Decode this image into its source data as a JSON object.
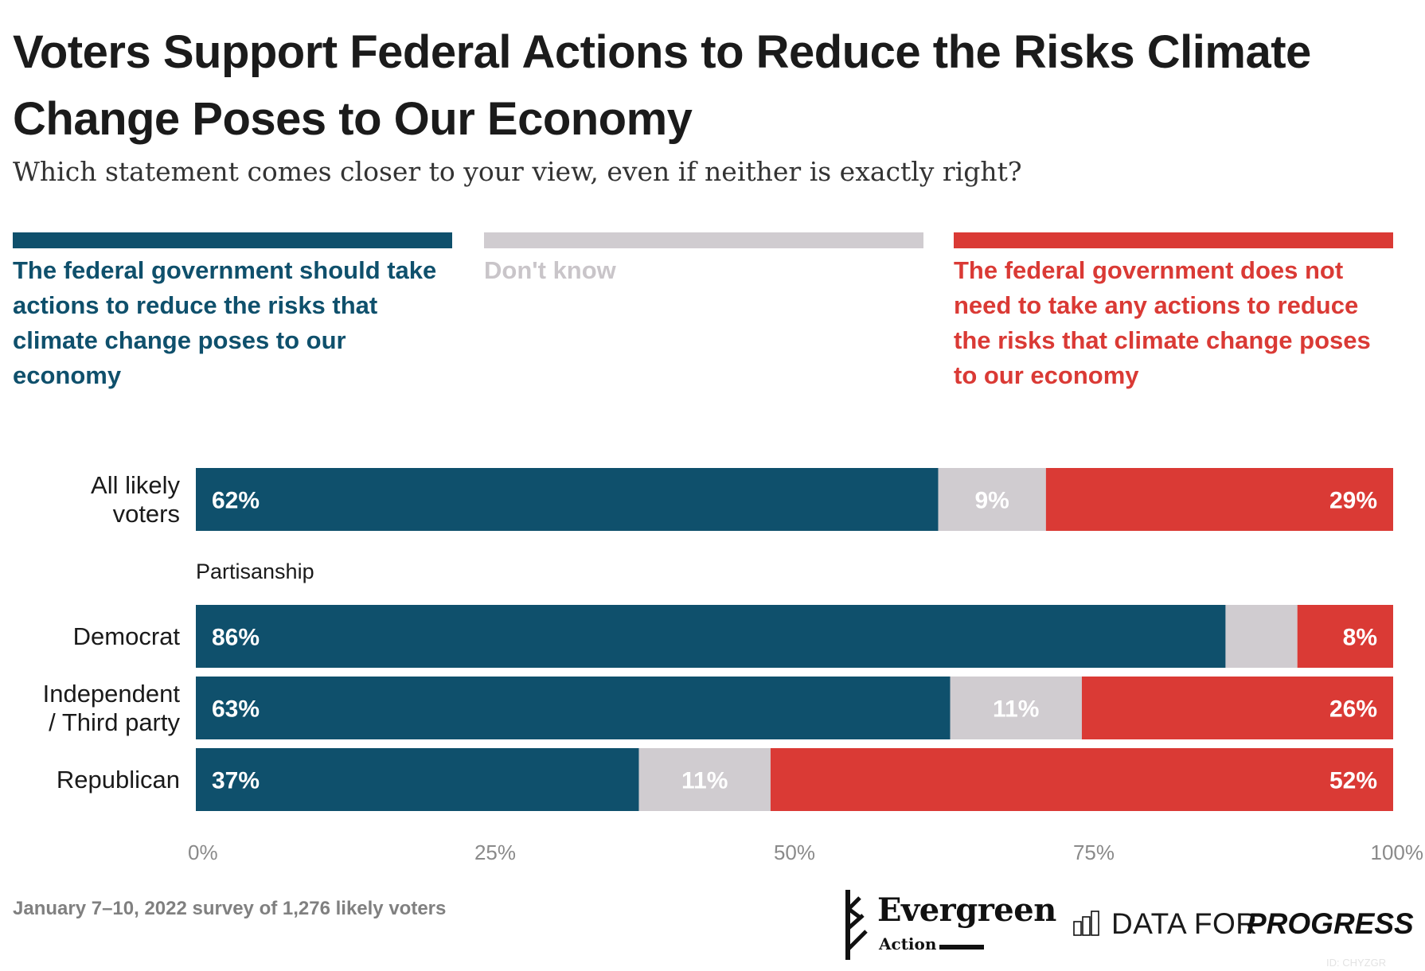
{
  "chart_data": {
    "type": "bar",
    "orientation": "horizontal",
    "stacked": true,
    "title": "Voters Support Federal Actions to Reduce the Risks Climate Change Poses to Our Economy",
    "subtitle": "Which statement comes closer to your view, even if neither is exactly right?",
    "xlabel": "",
    "ylabel": "",
    "xlim": [
      0,
      100
    ],
    "x_ticks": [
      "0%",
      "25%",
      "50%",
      "75%",
      "100%"
    ],
    "x_tick_values": [
      0,
      25,
      50,
      75,
      100
    ],
    "grid": false,
    "legend_position": "top",
    "categories": [
      "All likely voters",
      "Democrat",
      "Independent / Third party",
      "Republican"
    ],
    "category_label_lines": [
      [
        "All likely",
        "voters"
      ],
      [
        "Democrat"
      ],
      [
        "Independent",
        "/ Third party"
      ],
      [
        "Republican"
      ]
    ],
    "group_label": "Partisanship",
    "group_label_before_index": 1,
    "series": [
      {
        "name": "The federal government should take actions to reduce the risks that climate change poses to our economy",
        "color": "#0f506c",
        "values": [
          62,
          86,
          63,
          37
        ],
        "labels": [
          "62%",
          "86%",
          "63%",
          "37%"
        ]
      },
      {
        "name": "Don't know",
        "color": "#d0ccd0",
        "values": [
          9,
          6,
          11,
          11
        ],
        "labels": [
          "9%",
          "",
          "11%",
          "11%"
        ]
      },
      {
        "name": "The federal government does not need to take any actions to reduce the risks that climate change poses to our economy",
        "color": "#da3a35",
        "values": [
          29,
          8,
          26,
          52
        ],
        "labels": [
          "29%",
          "8%",
          "26%",
          "52%"
        ]
      }
    ]
  },
  "header": {
    "title": "Voters Support Federal Actions to Reduce the Risks Climate Change Poses to Our Economy",
    "subtitle": "Which statement comes closer to your view, even if neither is exactly right?"
  },
  "legend": [
    {
      "label": "The federal government should take actions to reduce the risks that climate change poses to our economy",
      "color": "#0f506c"
    },
    {
      "label": "Don't know",
      "color": "#d0ccd0"
    },
    {
      "label": "The federal government does not need to take any actions to reduce the risks that climate change poses to our economy",
      "color": "#da3a35"
    }
  ],
  "rows": [
    {
      "label_lines": [
        "All likely",
        "voters"
      ]
    },
    {
      "label_lines": [
        "Democrat"
      ]
    },
    {
      "label_lines": [
        "Independent",
        "/ Third party"
      ]
    },
    {
      "label_lines": [
        "Republican"
      ]
    }
  ],
  "group_label": "Partisanship",
  "footer": {
    "source": "January 7–10, 2022 survey of 1,276 likely voters",
    "logo_evergreen": "Evergreen",
    "logo_evergreen_sub": "Action",
    "logo_dfp_plain": "DATA FOR",
    "logo_dfp_bold": "PROGRESS",
    "chart_id": "ID: CHYZGR"
  },
  "colors": {
    "support": "#0f506c",
    "dont_know": "#d0ccd0",
    "oppose": "#da3a35",
    "dont_know_text": "#c9c5c9"
  }
}
